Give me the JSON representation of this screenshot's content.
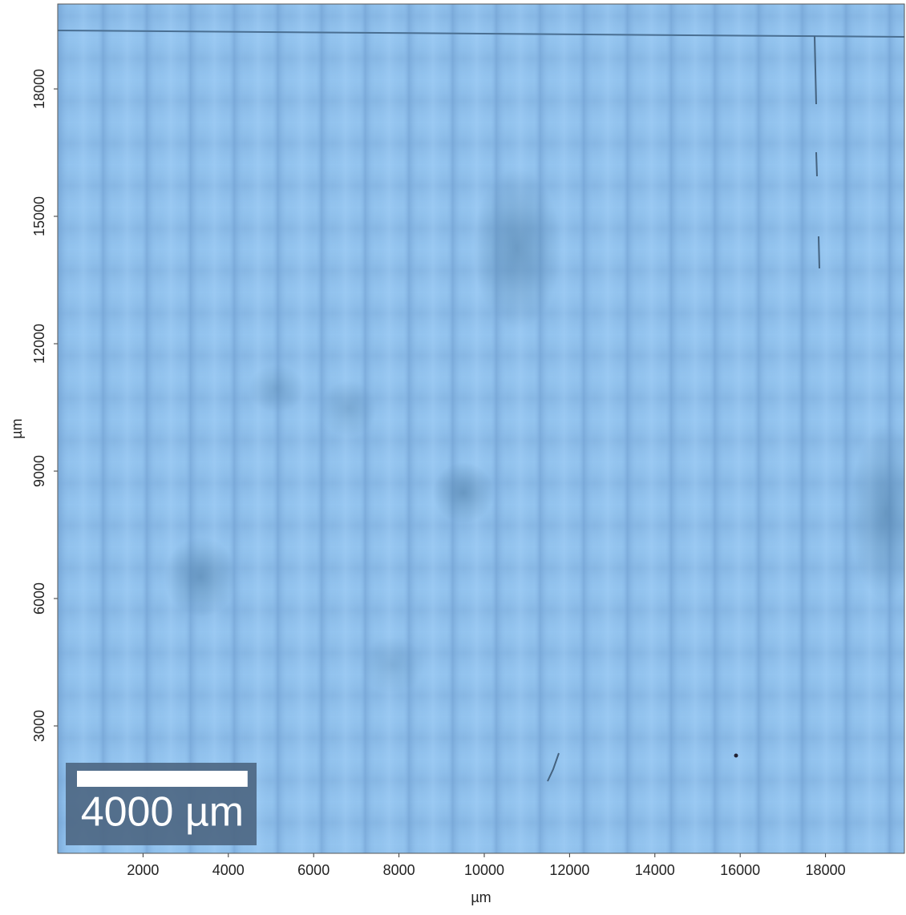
{
  "chart_data": {
    "type": "image",
    "xlabel": "µm",
    "ylabel": "µm",
    "xlim": [
      0,
      19850
    ],
    "ylim": [
      0,
      20000
    ],
    "xticks": [
      2000,
      4000,
      6000,
      8000,
      10000,
      12000,
      14000,
      16000,
      18000
    ],
    "yticks": [
      3000,
      6000,
      9000,
      12000,
      15000,
      18000
    ],
    "scale_bar": {
      "length": 4000,
      "label": "4000 µm"
    }
  }
}
